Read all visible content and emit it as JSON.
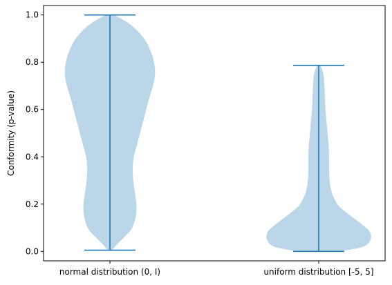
{
  "chart_data": {
    "type": "violin",
    "title": "",
    "xlabel": "",
    "ylabel": "Conformity (p-value)",
    "ylim": [
      -0.04,
      1.04
    ],
    "yticks": [
      0.0,
      0.2,
      0.4,
      0.6,
      0.8,
      1.0
    ],
    "ytick_labels": [
      "0.0",
      "0.2",
      "0.4",
      "0.6",
      "0.8",
      "1.0"
    ],
    "grid": false,
    "legend": "none",
    "colors": {
      "body": "#1f77b4",
      "lines": "#1f77b4"
    },
    "categories": [
      "normal distribution (0, I)",
      "uniform distribution [-5, 5]"
    ],
    "series": [
      {
        "min": 0.005,
        "max": 1.0,
        "density": [
          [
            0.005,
            0.04
          ],
          [
            0.03,
            0.14
          ],
          [
            0.07,
            0.32
          ],
          [
            0.1,
            0.43
          ],
          [
            0.15,
            0.5
          ],
          [
            0.2,
            0.51
          ],
          [
            0.25,
            0.48
          ],
          [
            0.3,
            0.45
          ],
          [
            0.35,
            0.44
          ],
          [
            0.4,
            0.46
          ],
          [
            0.45,
            0.52
          ],
          [
            0.5,
            0.58
          ],
          [
            0.55,
            0.64
          ],
          [
            0.6,
            0.7
          ],
          [
            0.65,
            0.76
          ],
          [
            0.7,
            0.83
          ],
          [
            0.75,
            0.87
          ],
          [
            0.8,
            0.85
          ],
          [
            0.85,
            0.78
          ],
          [
            0.9,
            0.66
          ],
          [
            0.95,
            0.45
          ],
          [
            0.98,
            0.25
          ],
          [
            1.0,
            0.08
          ]
        ]
      },
      {
        "min": 0.0,
        "max": 0.787,
        "density": [
          [
            0.0,
            0.4
          ],
          [
            0.02,
            0.86
          ],
          [
            0.05,
            1.0
          ],
          [
            0.08,
            0.99
          ],
          [
            0.1,
            0.91
          ],
          [
            0.13,
            0.74
          ],
          [
            0.17,
            0.5
          ],
          [
            0.2,
            0.36
          ],
          [
            0.25,
            0.25
          ],
          [
            0.3,
            0.21
          ],
          [
            0.35,
            0.2
          ],
          [
            0.4,
            0.2
          ],
          [
            0.45,
            0.19
          ],
          [
            0.5,
            0.17
          ],
          [
            0.55,
            0.15
          ],
          [
            0.6,
            0.13
          ],
          [
            0.65,
            0.12
          ],
          [
            0.7,
            0.11
          ],
          [
            0.75,
            0.09
          ],
          [
            0.787,
            0.03
          ]
        ]
      }
    ]
  }
}
